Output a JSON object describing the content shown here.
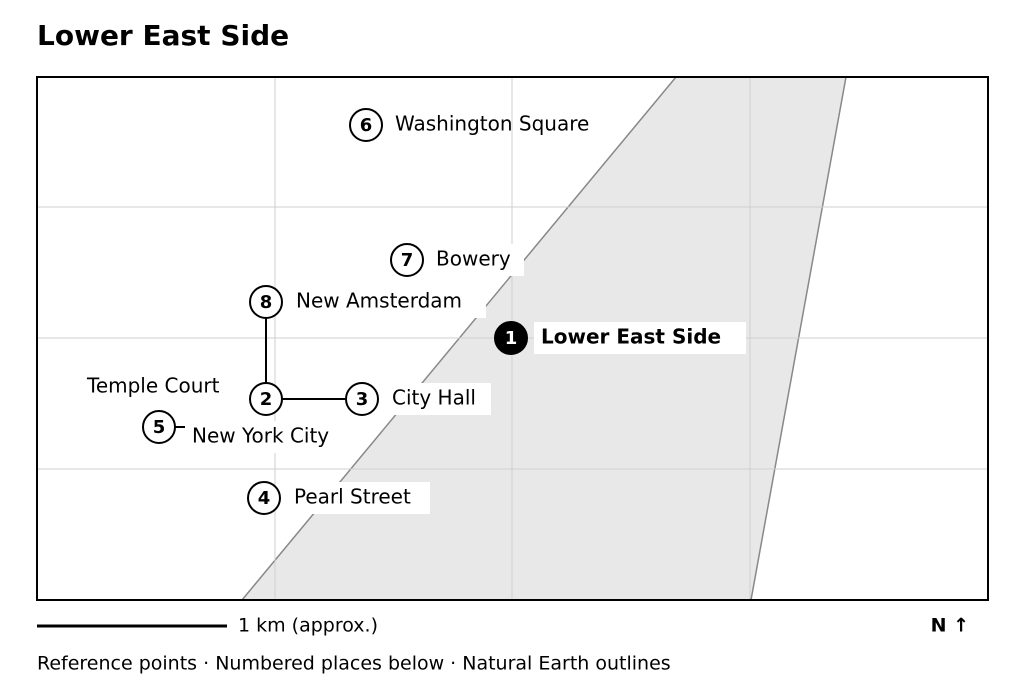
{
  "title": "Lower East Side",
  "places": [
    {
      "number": 1,
      "label": "Lower East Side"
    },
    {
      "number": 2,
      "label": "Temple Court"
    },
    {
      "number": 3,
      "label": "City Hall"
    },
    {
      "number": 4,
      "label": "Pearl Street"
    },
    {
      "number": 5,
      "label": "New York City"
    },
    {
      "number": 6,
      "label": "Washington Square"
    },
    {
      "number": 7,
      "label": "Bowery"
    },
    {
      "number": 8,
      "label": "New Amsterdam"
    }
  ],
  "scale_label": "1 km (approx.)",
  "north": "N ↑",
  "footer": "Reference points · Numbered places below · Natural Earth outlines"
}
